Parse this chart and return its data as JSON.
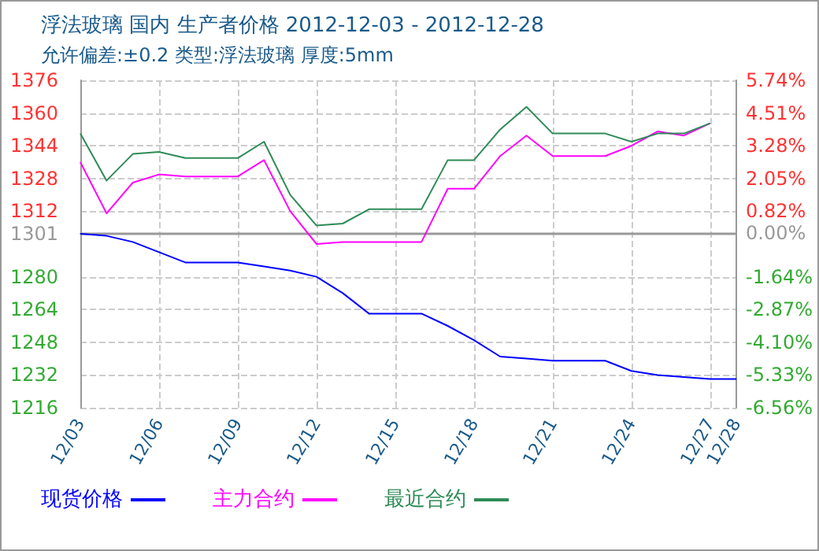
{
  "chart_data": {
    "type": "line",
    "title": "浮法玻璃 国内 生产者价格 2012-12-03 - 2012-12-28",
    "subtitle": "允许偏差:±0.2 类型:浮法玻璃 厚度:5mm",
    "x": [
      "2012-12-03",
      "2012-12-04",
      "2012-12-05",
      "2012-12-06",
      "2012-12-07",
      "2012-12-08",
      "2012-12-09",
      "2012-12-10",
      "2012-12-11",
      "2012-12-12",
      "2012-12-13",
      "2012-12-14",
      "2012-12-15",
      "2012-12-16",
      "2012-12-17",
      "2012-12-18",
      "2012-12-19",
      "2012-12-20",
      "2012-12-21",
      "2012-12-22",
      "2012-12-23",
      "2012-12-24",
      "2012-12-25",
      "2012-12-26",
      "2012-12-27",
      "2012-12-28"
    ],
    "series": [
      {
        "name": "现货价格",
        "color": "#0000ff",
        "values": [
          1301,
          1300,
          1297,
          1292,
          1287,
          1287,
          1287,
          1285,
          1283,
          1280,
          1272,
          1262,
          1262,
          1262,
          1256,
          1249,
          1241,
          1240,
          1239,
          1239,
          1239,
          1234,
          1232,
          1231,
          1230,
          1230
        ]
      },
      {
        "name": "主力合约",
        "color": "#ff00ff",
        "values": [
          1336,
          1311,
          1326,
          1330,
          1329,
          1329,
          1329,
          1337,
          1312,
          1296,
          1297,
          1297,
          1297,
          1297,
          1323,
          1323,
          1339,
          1349,
          1339,
          1339,
          1339,
          1344,
          1351,
          1349,
          1355,
          null
        ]
      },
      {
        "name": "最近合约",
        "color": "#2e8b57",
        "values": [
          1350,
          1327,
          1340,
          1341,
          1338,
          1338,
          1338,
          1346,
          1320,
          1305,
          1306,
          1313,
          1313,
          1313,
          1337,
          1337,
          1352,
          1363,
          1350,
          1350,
          1350,
          1346,
          1350,
          1350,
          1355,
          null
        ]
      }
    ],
    "xlim": [
      "2012-12-03",
      "2012-12-28"
    ],
    "xticks": [
      {
        "value": "2012-12-03",
        "label": "12/03"
      },
      {
        "value": "2012-12-06",
        "label": "12/06"
      },
      {
        "value": "2012-12-09",
        "label": "12/09"
      },
      {
        "value": "2012-12-12",
        "label": "12/12"
      },
      {
        "value": "2012-12-15",
        "label": "12/15"
      },
      {
        "value": "2012-12-18",
        "label": "12/18"
      },
      {
        "value": "2012-12-21",
        "label": "12/21"
      },
      {
        "value": "2012-12-24",
        "label": "12/24"
      },
      {
        "value": "2012-12-27",
        "label": "12/27"
      },
      {
        "value": "2012-12-28",
        "label": "12/28"
      }
    ],
    "ylim": [
      1216,
      1376
    ],
    "yticks": [
      {
        "value": 1216,
        "label": "1216"
      },
      {
        "value": 1232,
        "label": "1232"
      },
      {
        "value": 1248,
        "label": "1248"
      },
      {
        "value": 1264,
        "label": "1264"
      },
      {
        "value": 1280,
        "label": "1280"
      },
      {
        "value": 1301,
        "label": "1301"
      },
      {
        "value": 1312,
        "label": "1312"
      },
      {
        "value": 1328,
        "label": "1328"
      },
      {
        "value": 1344,
        "label": "1344"
      },
      {
        "value": 1360,
        "label": "1360"
      },
      {
        "value": 1376,
        "label": "1376"
      }
    ],
    "y2lim": [
      -6.56,
      5.74
    ],
    "y2ticks": [
      {
        "value": -6.56,
        "label": "-6.56%"
      },
      {
        "value": -5.33,
        "label": "-5.33%"
      },
      {
        "value": -4.1,
        "label": "-4.10%"
      },
      {
        "value": -2.87,
        "label": "-2.87%"
      },
      {
        "value": -1.64,
        "label": "-1.64%"
      },
      {
        "value": 0,
        "label": "0.00%"
      },
      {
        "value": 0.82,
        "label": "0.82%"
      },
      {
        "value": 2.05,
        "label": "2.05%"
      },
      {
        "value": 3.28,
        "label": "3.28%"
      },
      {
        "value": 4.51,
        "label": "4.51%"
      },
      {
        "value": 5.74,
        "label": "5.74%"
      }
    ],
    "ref_lines": [
      {
        "axis": "y",
        "value": 1301,
        "color": "#999999",
        "line_style": "solid"
      }
    ],
    "grid": true,
    "legend": "bottom left",
    "marker": "none",
    "line_style": "solid"
  }
}
